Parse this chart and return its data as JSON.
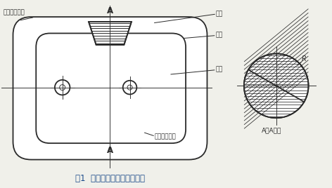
{
  "bg_color": "#f0f0ea",
  "line_color": "#2a2a2a",
  "title": "图1  铁芯、模芯、纸垫示意图",
  "label_终端电阻点焊": "终端电阻点焊",
  "label_模芯": "模芯",
  "label_纸垫": "纸垫",
  "label_铁芯": "铁芯",
  "label_始端电阻点焊": "始端电阻点焊",
  "label_AA": "A－A放大",
  "label_R": "R",
  "label_A": "A"
}
